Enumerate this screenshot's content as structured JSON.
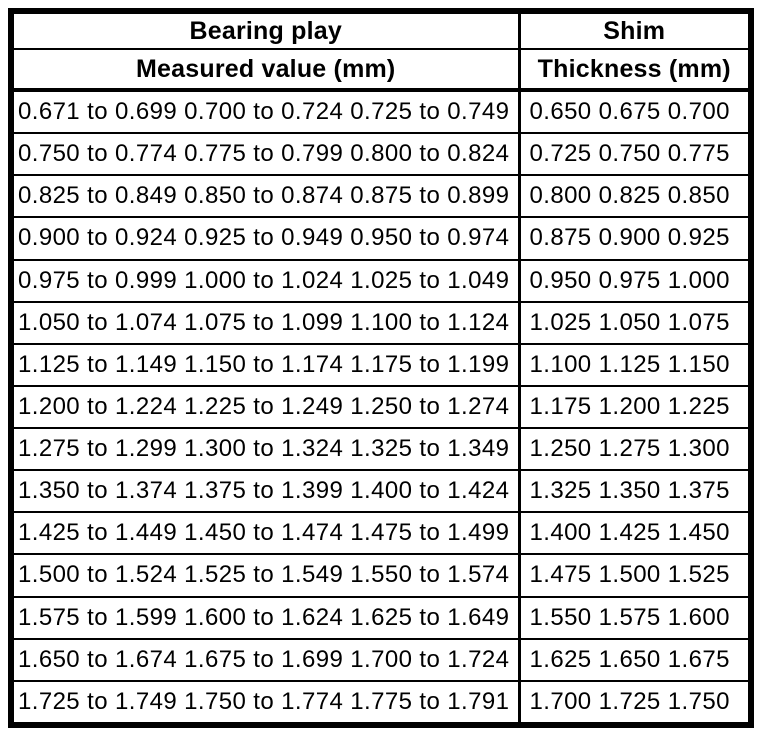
{
  "table": {
    "header": {
      "bearing_play": "Bearing play",
      "measured_value": "Measured value (mm)",
      "shim": "Shim",
      "thickness": "Thickness (mm)"
    },
    "rows": [
      {
        "measured": "0.671 to 0.699 0.700 to 0.724 0.725 to 0.749",
        "thickness": "0.650 0.675 0.700"
      },
      {
        "measured": "0.750 to 0.774 0.775 to 0.799 0.800 to 0.824",
        "thickness": "0.725 0.750 0.775"
      },
      {
        "measured": "0.825 to 0.849 0.850 to 0.874 0.875 to 0.899",
        "thickness": "0.800 0.825 0.850"
      },
      {
        "measured": "0.900 to 0.924 0.925 to 0.949 0.950 to 0.974",
        "thickness": "0.875 0.900 0.925"
      },
      {
        "measured": "0.975 to 0.999 1.000 to 1.024 1.025 to 1.049",
        "thickness": "0.950 0.975 1.000"
      },
      {
        "measured": "1.050 to 1.074 1.075 to 1.099 1.100 to 1.124",
        "thickness": "1.025 1.050 1.075"
      },
      {
        "measured": "1.125 to 1.149 1.150 to 1.174 1.175 to 1.199",
        "thickness": "1.100 1.125 1.150"
      },
      {
        "measured": "1.200 to 1.224 1.225 to 1.249 1.250 to 1.274",
        "thickness": "1.175 1.200 1.225"
      },
      {
        "measured": "1.275 to 1.299 1.300 to 1.324 1.325 to 1.349",
        "thickness": "1.250 1.275 1.300"
      },
      {
        "measured": "1.350 to 1.374 1.375 to 1.399 1.400 to 1.424",
        "thickness": "1.325 1.350 1.375"
      },
      {
        "measured": "1.425 to 1.449 1.450 to 1.474 1.475 to 1.499",
        "thickness": "1.400 1.425 1.450"
      },
      {
        "measured": "1.500 to 1.524 1.525 to 1.549 1.550 to 1.574",
        "thickness": "1.475 1.500 1.525"
      },
      {
        "measured": "1.575 to 1.599 1.600 to 1.624 1.625 to 1.649",
        "thickness": "1.550 1.575 1.600"
      },
      {
        "measured": "1.650 to 1.674 1.675 to 1.699 1.700 to 1.724",
        "thickness": "1.625 1.650 1.675"
      },
      {
        "measured": "1.725 to 1.749 1.750 to 1.774 1.775 to 1.791",
        "thickness": "1.700 1.725 1.750"
      }
    ]
  }
}
